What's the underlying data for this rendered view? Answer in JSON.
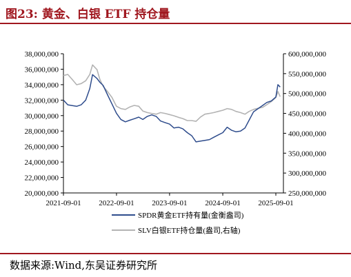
{
  "figure": {
    "title": "图23:  黄金、白银 ETF 持仓量",
    "source": "数据来源:Wind,东吴证券研究所"
  },
  "chart_data": {
    "type": "line",
    "title": "",
    "x_tick_labels": [
      "2021-09-01",
      "2022-09-01",
      "2023-09-01",
      "2024-09-01",
      "2025-09-01"
    ],
    "left_axis": {
      "ylim": [
        20000000,
        38000000
      ],
      "tick_labels": [
        "20,000,000",
        "22,000,000",
        "24,000,000",
        "26,000,000",
        "28,000,000",
        "30,000,000",
        "32,000,000",
        "34,000,000",
        "36,000,000",
        "38,000,000"
      ]
    },
    "right_axis": {
      "ylim": [
        250000000,
        600000000
      ],
      "tick_labels": [
        "250,000,000",
        "300,000,000",
        "350,000,000",
        "400,000,000",
        "450,000,000",
        "500,000,000",
        "550,000,000",
        "600,000,000"
      ]
    },
    "legend_position": "bottom",
    "grid": false,
    "series": [
      {
        "name": "SPDR黄金ETF持有量(金衡盎司)",
        "axis": "left",
        "color": "#2e4c8c",
        "x": [
          "2021-09-01",
          "2021-10-01",
          "2021-11-01",
          "2021-12-01",
          "2022-01-01",
          "2022-02-01",
          "2022-03-01",
          "2022-03-20",
          "2022-04-20",
          "2022-05-10",
          "2022-06-01",
          "2022-07-01",
          "2022-08-01",
          "2022-09-01",
          "2022-10-01",
          "2022-11-01",
          "2022-12-01",
          "2023-01-01",
          "2023-02-01",
          "2023-03-01",
          "2023-04-01",
          "2023-05-01",
          "2023-06-01",
          "2023-07-01",
          "2023-08-01",
          "2023-09-01",
          "2023-10-01",
          "2023-11-01",
          "2023-12-01",
          "2024-01-01",
          "2024-02-01",
          "2024-03-01",
          "2024-04-01",
          "2024-05-01",
          "2024-06-01",
          "2024-07-01",
          "2024-08-01",
          "2024-09-01",
          "2024-10-01",
          "2024-11-01",
          "2024-12-01",
          "2025-01-01",
          "2025-02-01",
          "2025-03-01",
          "2025-04-01",
          "2025-05-01",
          "2025-06-01",
          "2025-07-01",
          "2025-08-01",
          "2025-09-01",
          "2025-09-15",
          "2025-10-01"
        ],
        "values": [
          32000000,
          31400000,
          31300000,
          31200000,
          31400000,
          32000000,
          33500000,
          35300000,
          34800000,
          34300000,
          33900000,
          32700000,
          31500000,
          30300000,
          29500000,
          29200000,
          29400000,
          29600000,
          29800000,
          29500000,
          29900000,
          30100000,
          29900000,
          29300000,
          29100000,
          28900000,
          28400000,
          28500000,
          28300000,
          27800000,
          27400000,
          26600000,
          26700000,
          26800000,
          26900000,
          27200000,
          27500000,
          27800000,
          28500000,
          28100000,
          27900000,
          28000000,
          28400000,
          29400000,
          30500000,
          30900000,
          31300000,
          31700000,
          31900000,
          32400000,
          34000000,
          33700000
        ]
      },
      {
        "name": "SLV白银ETF持仓量(盎司,右轴)",
        "axis": "right",
        "color": "#b3b3b3",
        "x": [
          "2021-09-01",
          "2021-10-01",
          "2021-11-01",
          "2021-12-01",
          "2022-01-01",
          "2022-02-01",
          "2022-03-01",
          "2022-03-20",
          "2022-04-20",
          "2022-05-10",
          "2022-06-01",
          "2022-07-01",
          "2022-08-01",
          "2022-09-01",
          "2022-10-01",
          "2022-11-01",
          "2022-12-01",
          "2023-01-01",
          "2023-02-01",
          "2023-03-01",
          "2023-04-01",
          "2023-05-01",
          "2023-06-01",
          "2023-07-01",
          "2023-08-01",
          "2023-09-01",
          "2023-10-01",
          "2023-11-01",
          "2023-12-01",
          "2024-01-01",
          "2024-02-01",
          "2024-03-01",
          "2024-04-01",
          "2024-05-01",
          "2024-06-01",
          "2024-07-01",
          "2024-08-01",
          "2024-09-01",
          "2024-10-01",
          "2024-11-01",
          "2024-12-01",
          "2025-01-01",
          "2025-02-01",
          "2025-03-01",
          "2025-04-01",
          "2025-05-01",
          "2025-06-01",
          "2025-07-01",
          "2025-08-01",
          "2025-09-01",
          "2025-09-15",
          "2025-10-01"
        ],
        "values": [
          545000000,
          548000000,
          535000000,
          522000000,
          525000000,
          532000000,
          548000000,
          572000000,
          560000000,
          535000000,
          518000000,
          505000000,
          490000000,
          468000000,
          462000000,
          460000000,
          466000000,
          470000000,
          468000000,
          456000000,
          452000000,
          450000000,
          448000000,
          452000000,
          450000000,
          447000000,
          444000000,
          440000000,
          437000000,
          432000000,
          432000000,
          430000000,
          441000000,
          448000000,
          450000000,
          452000000,
          455000000,
          458000000,
          462000000,
          460000000,
          455000000,
          452000000,
          448000000,
          455000000,
          460000000,
          463000000,
          465000000,
          472000000,
          480000000,
          490000000,
          505000000,
          492000000
        ]
      }
    ]
  }
}
